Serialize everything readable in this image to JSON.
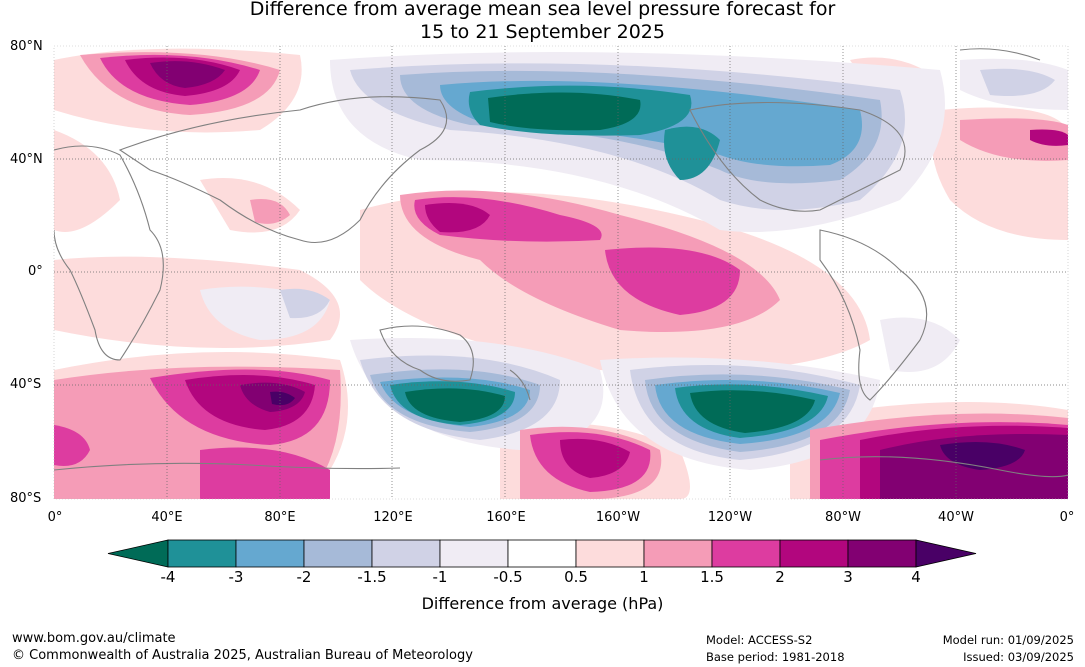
{
  "title_line1": "Difference from average mean sea level pressure forecast for",
  "title_line2": "15 to 21 September 2025",
  "lat_labels": [
    "80°N",
    "40°N",
    "0°",
    "40°S",
    "80°S"
  ],
  "lon_labels": [
    "0°",
    "40°E",
    "80°E",
    "120°E",
    "160°E",
    "160°W",
    "120°W",
    "80°W",
    "40°W",
    "0°"
  ],
  "colorbar": {
    "ticks": [
      "-4",
      "-3",
      "-2",
      "-1.5",
      "-1",
      "-0.5",
      "0.5",
      "1",
      "1.5",
      "2",
      "3",
      "4"
    ],
    "title": "Difference from average (hPa)",
    "colors": [
      "#006b57",
      "#1f9198",
      "#65a8d0",
      "#a6bad8",
      "#d0d2e6",
      "#f0ecf4",
      "#ffffff",
      "#fddcdc",
      "#f59cb7",
      "#dd3ca0",
      "#b2067e",
      "#820072",
      "#490066"
    ]
  },
  "footer": {
    "url": "www.bom.gov.au/climate",
    "copyright": "© Commonwealth of Australia 2025, Australian Bureau of Meteorology",
    "model": "Model: ACCESS-S2",
    "base_period": "Base period: 1981-2018",
    "model_run": "Model run: 01/09/2025",
    "issued": "Issued: 03/09/2025"
  }
}
